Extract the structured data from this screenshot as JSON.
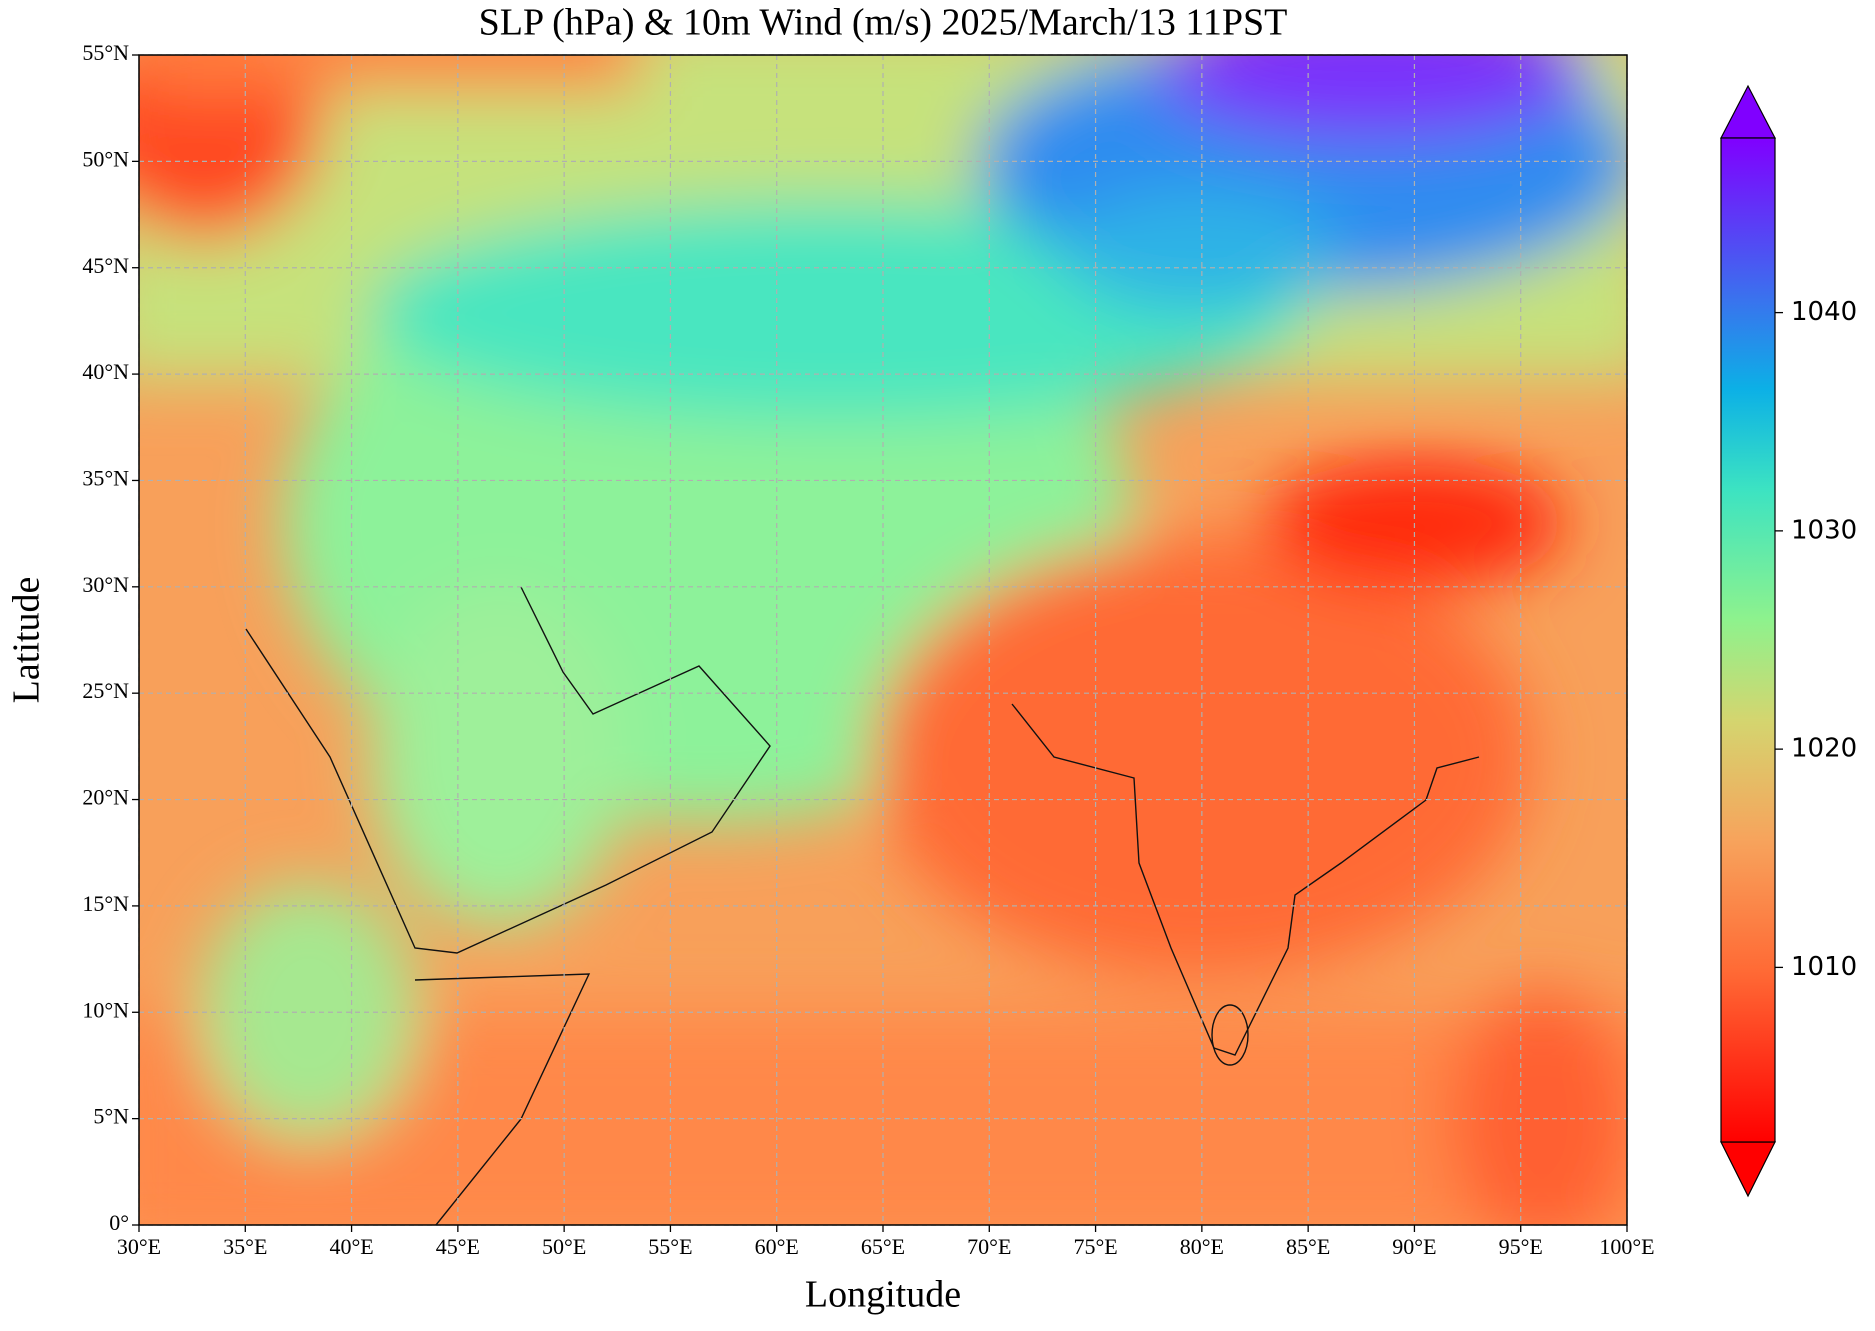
{
  "chart_data": {
    "type": "map",
    "title": "SLP (hPa) & 10m Wind (m/s)  2025/March/13  11PST",
    "x_label": "Longitude",
    "y_label": "Latitude",
    "xlim": [
      30,
      100
    ],
    "ylim": [
      0,
      55
    ],
    "xticks": [
      {
        "value": 30,
        "label": "30°E"
      },
      {
        "value": 35,
        "label": "35°E"
      },
      {
        "value": 40,
        "label": "40°E"
      },
      {
        "value": 45,
        "label": "45°E"
      },
      {
        "value": 50,
        "label": "50°E"
      },
      {
        "value": 55,
        "label": "55°E"
      },
      {
        "value": 60,
        "label": "60°E"
      },
      {
        "value": 65,
        "label": "65°E"
      },
      {
        "value": 70,
        "label": "70°E"
      },
      {
        "value": 75,
        "label": "75°E"
      },
      {
        "value": 80,
        "label": "80°E"
      },
      {
        "value": 85,
        "label": "85°E"
      },
      {
        "value": 90,
        "label": "90°E"
      },
      {
        "value": 95,
        "label": "95°E"
      },
      {
        "value": 100,
        "label": "100°E"
      }
    ],
    "yticks": [
      {
        "value": 0,
        "label": "0°"
      },
      {
        "value": 5,
        "label": "5°N"
      },
      {
        "value": 10,
        "label": "10°N"
      },
      {
        "value": 15,
        "label": "15°N"
      },
      {
        "value": 20,
        "label": "20°N"
      },
      {
        "value": 25,
        "label": "25°N"
      },
      {
        "value": 30,
        "label": "30°N"
      },
      {
        "value": 35,
        "label": "35°N"
      },
      {
        "value": 40,
        "label": "40°N"
      },
      {
        "value": 45,
        "label": "45°N"
      },
      {
        "value": 50,
        "label": "50°N"
      },
      {
        "value": 55,
        "label": "55°N"
      }
    ],
    "grid": true,
    "colorbar": {
      "lim": [
        1002,
        1048
      ],
      "ticks": [
        1010,
        1020,
        1030,
        1040
      ]
    }
  }
}
